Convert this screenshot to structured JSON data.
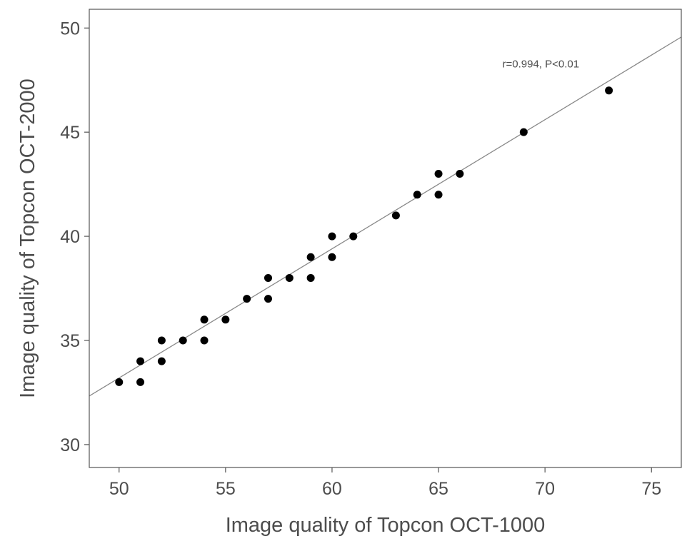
{
  "chart_data": {
    "type": "scatter",
    "xlabel": "Image quality of Topcon OCT-1000",
    "ylabel": "Image quality of Topcon OCT-2000",
    "xlim": [
      48.6,
      76.4
    ],
    "ylim": [
      28.9,
      50.9
    ],
    "xticks": [
      50,
      55,
      60,
      65,
      70,
      75
    ],
    "yticks": [
      30,
      35,
      40,
      45,
      50
    ],
    "grid": false,
    "annotation": {
      "text": "r=0.994, P<0.01",
      "x": 68.0,
      "y": 48.1
    },
    "fit_line": {
      "slope": 0.62,
      "intercept": 2.2
    },
    "points": [
      {
        "x": 50,
        "y": 33
      },
      {
        "x": 51,
        "y": 34
      },
      {
        "x": 51,
        "y": 33
      },
      {
        "x": 52,
        "y": 35
      },
      {
        "x": 52,
        "y": 34
      },
      {
        "x": 53,
        "y": 35
      },
      {
        "x": 54,
        "y": 36
      },
      {
        "x": 54,
        "y": 35
      },
      {
        "x": 55,
        "y": 36
      },
      {
        "x": 56,
        "y": 37
      },
      {
        "x": 57,
        "y": 38
      },
      {
        "x": 57,
        "y": 37
      },
      {
        "x": 58,
        "y": 38
      },
      {
        "x": 59,
        "y": 39
      },
      {
        "x": 59,
        "y": 38
      },
      {
        "x": 60,
        "y": 40
      },
      {
        "x": 60,
        "y": 39
      },
      {
        "x": 61,
        "y": 40
      },
      {
        "x": 63,
        "y": 41
      },
      {
        "x": 64,
        "y": 42
      },
      {
        "x": 65,
        "y": 43
      },
      {
        "x": 65,
        "y": 42
      },
      {
        "x": 66,
        "y": 43
      },
      {
        "x": 69,
        "y": 45
      },
      {
        "x": 73,
        "y": 47
      }
    ],
    "colors": {
      "points": "#000000",
      "line": "#888888",
      "axis": "#4d4d4d"
    }
  }
}
